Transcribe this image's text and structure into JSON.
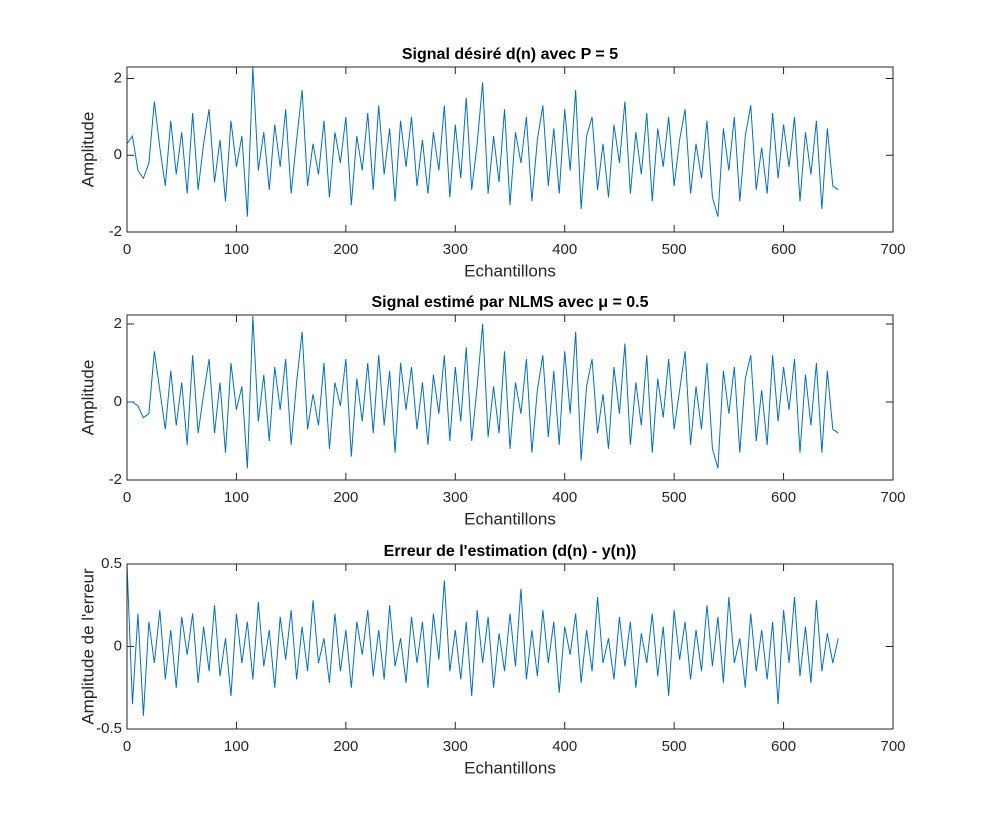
{
  "chart_data": [
    {
      "type": "line",
      "title": "Signal désiré d(n) avec P = 5",
      "xlabel": "Echantillons",
      "ylabel": "Amplitude",
      "color": "#0072bd",
      "x": [
        0,
        5,
        10,
        15,
        20,
        25,
        30,
        35,
        40,
        45,
        50,
        55,
        60,
        65,
        70,
        75,
        80,
        85,
        90,
        95,
        100,
        105,
        110,
        115,
        120,
        125,
        130,
        135,
        140,
        145,
        150,
        155,
        160,
        165,
        170,
        175,
        180,
        185,
        190,
        195,
        200,
        205,
        210,
        215,
        220,
        225,
        230,
        235,
        240,
        245,
        250,
        255,
        260,
        265,
        270,
        275,
        280,
        285,
        290,
        295,
        300,
        305,
        310,
        315,
        320,
        325,
        330,
        335,
        340,
        345,
        350,
        355,
        360,
        365,
        370,
        375,
        380,
        385,
        390,
        395,
        400,
        405,
        410,
        415,
        420,
        425,
        430,
        435,
        440,
        445,
        450,
        455,
        460,
        465,
        470,
        475,
        480,
        485,
        490,
        495,
        500,
        505,
        510,
        515,
        520,
        525,
        530,
        535,
        540,
        545,
        550,
        555,
        560,
        565,
        570,
        575,
        580,
        585,
        590,
        595,
        600,
        605,
        610,
        615,
        620,
        625,
        630,
        635,
        640,
        645,
        650
      ],
      "values": [
        0.3,
        0.5,
        -0.4,
        -0.6,
        -0.2,
        1.4,
        0.2,
        -0.8,
        0.9,
        -0.5,
        0.6,
        -1.0,
        1.1,
        -0.9,
        0.3,
        1.2,
        -0.7,
        0.4,
        -1.2,
        0.9,
        -0.3,
        0.5,
        -1.6,
        2.3,
        -0.4,
        0.6,
        -0.9,
        0.8,
        -0.3,
        1.2,
        -1.0,
        0.4,
        1.7,
        -0.8,
        0.3,
        -0.5,
        0.9,
        -1.1,
        0.6,
        -0.2,
        1.0,
        -1.3,
        0.5,
        -0.4,
        1.1,
        -0.9,
        1.3,
        -0.5,
        0.7,
        -1.2,
        0.9,
        -0.3,
        1.0,
        -0.8,
        0.4,
        -1.0,
        0.6,
        -0.4,
        1.3,
        -1.1,
        0.8,
        -0.6,
        1.5,
        -0.9,
        0.3,
        1.9,
        -1.0,
        0.5,
        -0.7,
        1.2,
        -1.3,
        0.6,
        -0.2,
        1.0,
        -1.2,
        0.4,
        1.3,
        -0.8,
        0.7,
        -1.0,
        1.2,
        -0.4,
        1.7,
        -1.4,
        0.5,
        1.0,
        -0.9,
        0.3,
        -1.1,
        0.8,
        -0.2,
        1.4,
        -1.0,
        0.6,
        -0.5,
        1.1,
        -1.2,
        0.7,
        -0.3,
        1.0,
        -0.8,
        0.4,
        1.2,
        -1.0,
        0.3,
        -0.6,
        0.9,
        -1.1,
        -1.6,
        0.7,
        -0.4,
        1.0,
        -1.2,
        0.5,
        1.3,
        -0.9,
        0.2,
        -1.0,
        1.1,
        -0.6,
        0.8,
        -0.3,
        1.0,
        -1.2,
        0.6,
        -0.5,
        0.9,
        -1.4,
        0.7,
        -0.8,
        -0.9
      ],
      "xlim": [
        0,
        700
      ],
      "xticks": [
        0,
        100,
        200,
        300,
        400,
        500,
        600,
        700
      ],
      "ylim": [
        -2,
        2.3
      ],
      "yticks": [
        -2,
        0,
        2
      ]
    },
    {
      "type": "line",
      "title": "Signal estimé par NLMS avec μ = 0.5",
      "xlabel": "Echantillons",
      "ylabel": "Amplitude",
      "color": "#0072bd",
      "x": [
        0,
        5,
        10,
        15,
        20,
        25,
        30,
        35,
        40,
        45,
        50,
        55,
        60,
        65,
        70,
        75,
        80,
        85,
        90,
        95,
        100,
        105,
        110,
        115,
        120,
        125,
        130,
        135,
        140,
        145,
        150,
        155,
        160,
        165,
        170,
        175,
        180,
        185,
        190,
        195,
        200,
        205,
        210,
        215,
        220,
        225,
        230,
        235,
        240,
        245,
        250,
        255,
        260,
        265,
        270,
        275,
        280,
        285,
        290,
        295,
        300,
        305,
        310,
        315,
        320,
        325,
        330,
        335,
        340,
        345,
        350,
        355,
        360,
        365,
        370,
        375,
        380,
        385,
        390,
        395,
        400,
        405,
        410,
        415,
        420,
        425,
        430,
        435,
        440,
        445,
        450,
        455,
        460,
        465,
        470,
        475,
        480,
        485,
        490,
        495,
        500,
        505,
        510,
        515,
        520,
        525,
        530,
        535,
        540,
        545,
        550,
        555,
        560,
        565,
        570,
        575,
        580,
        585,
        590,
        595,
        600,
        605,
        610,
        615,
        620,
        625,
        630,
        635,
        640,
        645,
        650
      ],
      "values": [
        0,
        0,
        -0.1,
        -0.4,
        -0.3,
        1.3,
        0.3,
        -0.7,
        0.8,
        -0.6,
        0.5,
        -1.1,
        1.2,
        -0.8,
        0.2,
        1.1,
        -0.8,
        0.5,
        -1.3,
        1.0,
        -0.2,
        0.4,
        -1.7,
        2.2,
        -0.5,
        0.7,
        -1.0,
        0.9,
        -0.2,
        1.1,
        -1.1,
        0.5,
        1.8,
        -0.7,
        0.2,
        -0.6,
        1.0,
        -1.2,
        0.5,
        -0.1,
        1.1,
        -1.4,
        0.6,
        -0.5,
        1.0,
        -0.8,
        1.2,
        -0.6,
        0.8,
        -1.3,
        1.0,
        -0.2,
        0.9,
        -0.7,
        0.5,
        -1.1,
        0.7,
        -0.3,
        1.2,
        -1.0,
        0.9,
        -0.5,
        1.4,
        -1.0,
        0.4,
        2.0,
        -0.9,
        0.4,
        -0.8,
        1.3,
        -1.2,
        0.5,
        -0.3,
        1.1,
        -1.3,
        0.3,
        1.2,
        -0.9,
        0.8,
        -1.1,
        1.3,
        -0.3,
        1.8,
        -1.5,
        0.4,
        1.1,
        -0.8,
        0.2,
        -1.2,
        0.9,
        -0.3,
        1.5,
        -1.1,
        0.5,
        -0.6,
        1.2,
        -1.3,
        0.6,
        -0.4,
        1.1,
        -0.7,
        0.3,
        1.3,
        -1.1,
        0.4,
        -0.7,
        1.0,
        -1.2,
        -1.7,
        0.8,
        -0.3,
        0.9,
        -1.3,
        0.6,
        1.2,
        -1.0,
        0.3,
        -1.1,
        1.2,
        -0.5,
        0.9,
        -0.2,
        1.1,
        -1.3,
        0.7,
        -0.6,
        1.0,
        -1.3,
        0.8,
        -0.7,
        -0.8
      ],
      "xlim": [
        0,
        700
      ],
      "xticks": [
        0,
        100,
        200,
        300,
        400,
        500,
        600,
        700
      ],
      "ylim": [
        -2,
        2.23
      ],
      "yticks": [
        -2,
        0,
        2
      ]
    },
    {
      "type": "line",
      "title": "Erreur de l'estimation (d(n) - y(n))",
      "xlabel": "Echantillons",
      "ylabel": "Amplitude de l'erreur",
      "color": "#0072bd",
      "x": [
        0,
        5,
        10,
        15,
        20,
        25,
        30,
        35,
        40,
        45,
        50,
        55,
        60,
        65,
        70,
        75,
        80,
        85,
        90,
        95,
        100,
        105,
        110,
        115,
        120,
        125,
        130,
        135,
        140,
        145,
        150,
        155,
        160,
        165,
        170,
        175,
        180,
        185,
        190,
        195,
        200,
        205,
        210,
        215,
        220,
        225,
        230,
        235,
        240,
        245,
        250,
        255,
        260,
        265,
        270,
        275,
        280,
        285,
        290,
        295,
        300,
        305,
        310,
        315,
        320,
        325,
        330,
        335,
        340,
        345,
        350,
        355,
        360,
        365,
        370,
        375,
        380,
        385,
        390,
        395,
        400,
        405,
        410,
        415,
        420,
        425,
        430,
        435,
        440,
        445,
        450,
        455,
        460,
        465,
        470,
        475,
        480,
        485,
        490,
        495,
        500,
        505,
        510,
        515,
        520,
        525,
        530,
        535,
        540,
        545,
        550,
        555,
        560,
        565,
        570,
        575,
        580,
        585,
        590,
        595,
        600,
        605,
        610,
        615,
        620,
        625,
        630,
        635,
        640,
        645,
        650
      ],
      "values": [
        0.5,
        -0.35,
        0.2,
        -0.42,
        0.15,
        -0.1,
        0.22,
        -0.2,
        0.1,
        -0.25,
        0.18,
        -0.05,
        0.2,
        -0.22,
        0.12,
        -0.15,
        0.25,
        -0.18,
        0.05,
        -0.3,
        0.2,
        -0.1,
        0.15,
        -0.2,
        0.27,
        -0.12,
        0.1,
        -0.25,
        0.18,
        -0.08,
        0.22,
        -0.2,
        0.12,
        -0.15,
        0.28,
        -0.1,
        0.05,
        -0.22,
        0.2,
        -0.15,
        0.1,
        -0.25,
        0.15,
        -0.05,
        0.22,
        -0.18,
        0.1,
        -0.2,
        0.25,
        -0.12,
        0.05,
        -0.22,
        0.18,
        -0.1,
        0.15,
        -0.25,
        0.2,
        -0.08,
        0.4,
        -0.15,
        0.1,
        -0.2,
        0.15,
        -0.3,
        0.22,
        -0.1,
        0.18,
        -0.25,
        0.08,
        -0.15,
        0.2,
        -0.12,
        0.35,
        -0.2,
        0.1,
        -0.18,
        0.22,
        -0.1,
        0.15,
        -0.28,
        0.12,
        -0.05,
        0.2,
        -0.22,
        0.1,
        -0.15,
        0.3,
        -0.1,
        0.05,
        -0.2,
        0.18,
        -0.12,
        0.15,
        -0.25,
        0.08,
        -0.1,
        0.2,
        -0.18,
        0.12,
        -0.3,
        0.22,
        -0.08,
        0.15,
        -0.2,
        0.1,
        -0.15,
        0.25,
        -0.12,
        0.18,
        -0.22,
        0.3,
        -0.1,
        0.05,
        -0.25,
        0.2,
        -0.15,
        0.1,
        -0.2,
        0.15,
        -0.35,
        0.22,
        -0.1,
        0.3,
        -0.18,
        0.12,
        -0.22,
        0.28,
        -0.15,
        0.08,
        -0.1,
        0.05
      ],
      "xlim": [
        0,
        700
      ],
      "xticks": [
        0,
        100,
        200,
        300,
        400,
        500,
        600,
        700
      ],
      "ylim": [
        -0.5,
        0.5
      ],
      "yticks": [
        -0.5,
        0,
        0.5
      ]
    }
  ]
}
